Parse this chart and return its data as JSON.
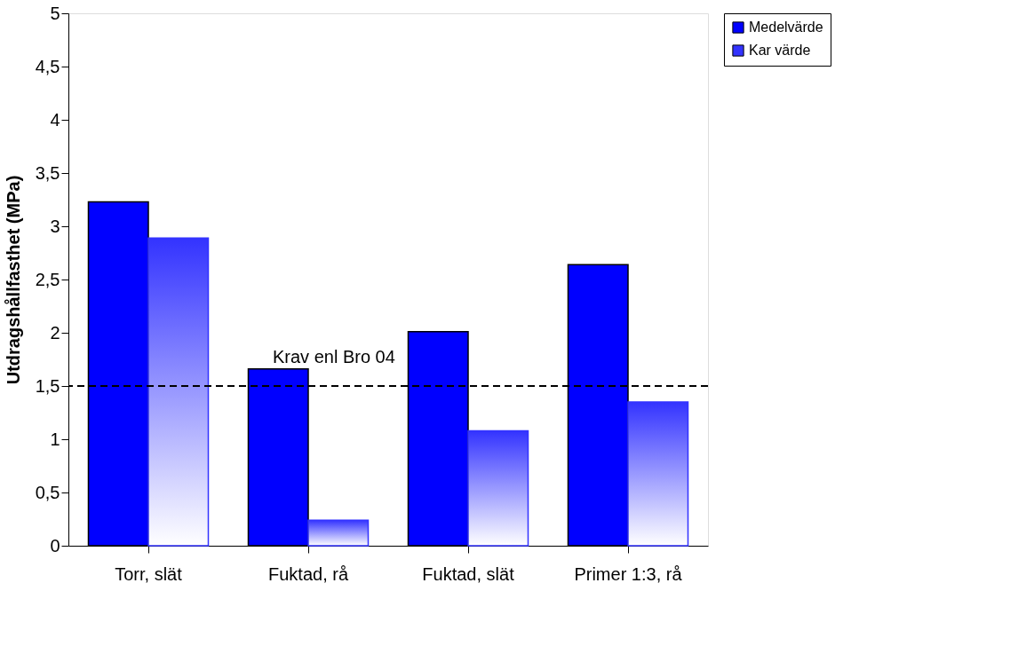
{
  "chart_data": {
    "type": "bar",
    "ylabel": "Utdragshållfasthet (MPa)",
    "categories": [
      "Torr, slät",
      "Fuktad, rå",
      "Fuktad, slät",
      "Primer 1:3, rå"
    ],
    "series": [
      {
        "name": "Medelvärde",
        "color": "#0000ff",
        "values": [
          3.23,
          1.66,
          2.01,
          2.64
        ]
      },
      {
        "name": "Kar värde",
        "color": "#3333ff",
        "values": [
          2.89,
          0.24,
          1.08,
          1.35
        ]
      }
    ],
    "ylim": [
      0,
      5
    ],
    "yticks": [
      0,
      {
        "value": 0.5,
        "label": "0,5"
      },
      1,
      {
        "value": 1.5,
        "label": "1,5"
      },
      2,
      {
        "value": 2.5,
        "label": "2,5"
      },
      3,
      {
        "value": 3.5,
        "label": "3,5"
      },
      4,
      {
        "value": 4.5,
        "label": "4,5"
      },
      5
    ],
    "ref_lines": [
      {
        "axis": "y",
        "value": 1.5,
        "label": "Krav enl Bro 04",
        "color": "#000000",
        "line_style": "dashed"
      }
    ],
    "grid": false,
    "legend": "right"
  }
}
